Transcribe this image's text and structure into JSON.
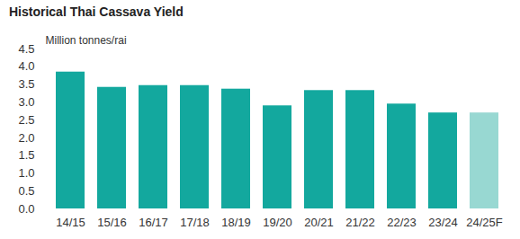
{
  "chart_data": {
    "type": "bar",
    "title": "Historical Thai Cassava Yield",
    "y_label": "Million tonnes/rai",
    "categories": [
      "14/15",
      "15/16",
      "16/17",
      "17/18",
      "18/19",
      "19/20",
      "20/21",
      "21/22",
      "22/23",
      "23/24",
      "24/25F"
    ],
    "values": [
      3.85,
      3.42,
      3.47,
      3.47,
      3.37,
      2.9,
      3.33,
      3.33,
      2.95,
      2.7,
      2.7
    ],
    "colors": [
      "#13a89e",
      "#13a89e",
      "#13a89e",
      "#13a89e",
      "#13a89e",
      "#13a89e",
      "#13a89e",
      "#13a89e",
      "#13a89e",
      "#13a89e",
      "#98d8d2"
    ],
    "ylim": [
      0,
      4.5
    ],
    "yticks": [
      {
        "value": 0,
        "label": "0.0"
      },
      0.5,
      {
        "value": 1,
        "label": "1.0"
      },
      1.5,
      {
        "value": 2,
        "label": "2.0"
      },
      2.5,
      {
        "value": 3,
        "label": "3.0"
      },
      3.5,
      {
        "value": 4,
        "label": "4.0"
      },
      4.5
    ],
    "grid": false
  }
}
